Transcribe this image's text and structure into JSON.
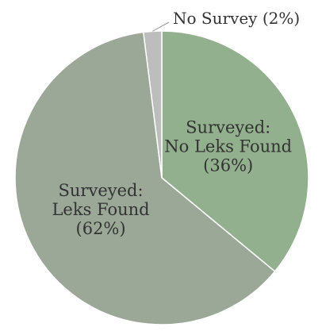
{
  "chart_data": {
    "type": "pie",
    "title": "",
    "legend": "none",
    "start_angle_deg": -90,
    "direction": "clockwise",
    "slices": [
      {
        "id": "no-leks",
        "value": 36,
        "color": "#93B08E",
        "label_lines": [
          "Surveyed:",
          "No Leks Found",
          "(36%)"
        ]
      },
      {
        "id": "leks-found",
        "value": 62,
        "color": "#9BA897",
        "label_lines": [
          "Surveyed:",
          "Leks Found",
          "(62%)"
        ]
      },
      {
        "id": "no-survey",
        "value": 2,
        "color": "#BDBDBD",
        "label_lines": [
          "No Survey (2%)"
        ]
      }
    ]
  }
}
